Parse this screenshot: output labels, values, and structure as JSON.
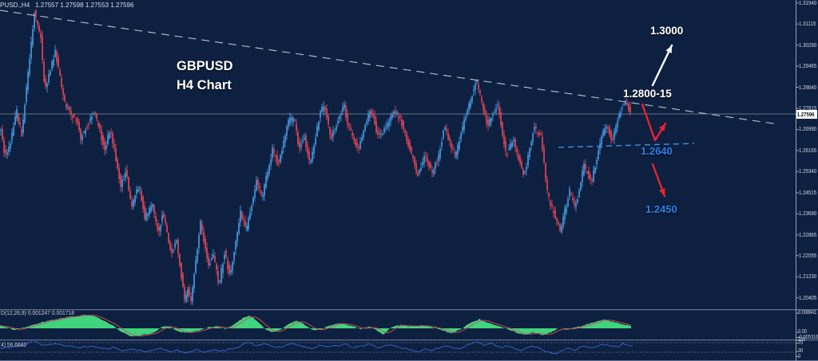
{
  "window": {
    "ohlc_line": "PUSD.,H4   1.27557 1.27598 1.27553 1.27596"
  },
  "colors": {
    "background": "#0d2040",
    "bull": "#4598dd",
    "bear": "#e04556",
    "macd_fill": "#3fd47d",
    "macd_signal": "#cf4e5a",
    "rsi_line": "#3a66d0",
    "annotation_blue": "#2f7fe8",
    "annotation_white": "#ffffff",
    "axis_text": "#cdd6e2",
    "trendline": "#c2ccd6",
    "support_dash": "#3f8ce4",
    "price_line": "#9aa4b2",
    "separator": "#5f6f92",
    "level_dotted": "#8b98ad"
  },
  "annotations": {
    "symbol": "GBPUSD",
    "timeframe": "H4 Chart",
    "target_up": "1.3000",
    "resistance_zone": "1.2800-15",
    "support_level": "1.2640",
    "target_down": "1.2450"
  },
  "price_axis": {
    "ticks": [
      "1.31940",
      "1.31115",
      "1.30290",
      "1.29465",
      "1.28640",
      "1.27815",
      "1.26990",
      "1.26165",
      "1.25340",
      "1.24515",
      "1.23690",
      "1.22865",
      "1.22055",
      "1.21230",
      "1.20405"
    ],
    "current_price": "1.27596"
  },
  "macd_panel": {
    "label": "D(12,26,9)",
    "main_value": "0.001247",
    "signal_value": "0.001718",
    "axis_max": "0.008841",
    "axis_zero": "0.00",
    "axis_min": "-0.005316"
  },
  "rsi_panel": {
    "label": "4) 56.6682",
    "axis_labels": [
      "100",
      "70",
      "30",
      "0"
    ]
  },
  "chart_data": {
    "type": "candlestick",
    "symbol": "GBPUSD",
    "timeframe": "H4",
    "ohlc_current": {
      "open": 1.27557,
      "high": 1.27598,
      "low": 1.27553,
      "close": 1.27596
    },
    "ylim": [
      1.19989,
      1.32054
    ],
    "y_axis_ticks": [
      1.3194,
      1.31115,
      1.3029,
      1.29465,
      1.2864,
      1.27815,
      1.2699,
      1.26165,
      1.2534,
      1.24515,
      1.2369,
      1.22865,
      1.22055,
      1.2123,
      1.20405
    ],
    "price_path": [
      [
        0,
        1.27
      ],
      [
        5,
        1.2594
      ],
      [
        12,
        1.265
      ],
      [
        20,
        1.2769
      ],
      [
        26,
        1.2675
      ],
      [
        42,
        1.3159
      ],
      [
        50,
        1.3056
      ],
      [
        55,
        1.2847
      ],
      [
        68,
        1.3006
      ],
      [
        80,
        1.28
      ],
      [
        87,
        1.276
      ],
      [
        95,
        1.2738
      ],
      [
        100,
        1.2666
      ],
      [
        117,
        1.2769
      ],
      [
        130,
        1.2622
      ],
      [
        137,
        1.2707
      ],
      [
        150,
        1.2479
      ],
      [
        157,
        1.2541
      ],
      [
        163,
        1.2395
      ],
      [
        173,
        1.2479
      ],
      [
        180,
        1.2354
      ],
      [
        190,
        1.2401
      ],
      [
        197,
        1.2292
      ],
      [
        203,
        1.2373
      ],
      [
        213,
        1.2208
      ],
      [
        220,
        1.227
      ],
      [
        230,
        1.2027
      ],
      [
        234,
        1.2077
      ],
      [
        238,
        1.2033
      ],
      [
        250,
        1.2332
      ],
      [
        260,
        1.2167
      ],
      [
        266,
        1.2214
      ],
      [
        273,
        1.2092
      ],
      [
        280,
        1.2217
      ],
      [
        287,
        1.2124
      ],
      [
        300,
        1.2373
      ],
      [
        307,
        1.2301
      ],
      [
        320,
        1.2498
      ],
      [
        327,
        1.2435
      ],
      [
        340,
        1.2622
      ],
      [
        347,
        1.256
      ],
      [
        360,
        1.2728
      ],
      [
        367,
        1.2747
      ],
      [
        373,
        1.2622
      ],
      [
        380,
        1.2666
      ],
      [
        387,
        1.256
      ],
      [
        400,
        1.2769
      ],
      [
        405,
        1.2791
      ],
      [
        413,
        1.2666
      ],
      [
        430,
        1.2791
      ],
      [
        433,
        1.2728
      ],
      [
        447,
        1.2622
      ],
      [
        463,
        1.2778
      ],
      [
        473,
        1.2666
      ],
      [
        493,
        1.2769
      ],
      [
        500,
        1.2744
      ],
      [
        510,
        1.2644
      ],
      [
        522,
        1.252
      ],
      [
        530,
        1.2594
      ],
      [
        540,
        1.2535
      ],
      [
        548,
        1.2594
      ],
      [
        555,
        1.2707
      ],
      [
        562,
        1.265
      ],
      [
        569,
        1.2591
      ],
      [
        578,
        1.2707
      ],
      [
        595,
        1.2894
      ],
      [
        609,
        1.2716
      ],
      [
        622,
        1.28
      ],
      [
        632,
        1.2604
      ],
      [
        642,
        1.2654
      ],
      [
        655,
        1.2513
      ],
      [
        667,
        1.2707
      ],
      [
        676,
        1.2669
      ],
      [
        685,
        1.2435
      ],
      [
        700,
        1.2301
      ],
      [
        712,
        1.2457
      ],
      [
        719,
        1.2389
      ],
      [
        730,
        1.256
      ],
      [
        739,
        1.2488
      ],
      [
        752,
        1.2675
      ],
      [
        759,
        1.2716
      ],
      [
        765,
        1.2654
      ],
      [
        775,
        1.2769
      ],
      [
        782,
        1.2813
      ],
      [
        788,
        1.276
      ]
    ],
    "trendline": {
      "x": [
        0,
        975
      ],
      "price": [
        1.3165,
        1.2719
      ],
      "style": "dashed"
    },
    "current_price_line": 1.27596,
    "support_line": {
      "x": [
        699,
        869
      ],
      "price": [
        1.2629,
        1.2644
      ],
      "style": "dashed",
      "label": "1.2640"
    },
    "macd": {
      "range": [
        -0.005316,
        0.008841
      ],
      "current_main": 0.001247,
      "current_signal": 0.001718,
      "series": [
        [
          0,
          0.0016
        ],
        [
          10,
          0.0006
        ],
        [
          18,
          -0.0012
        ],
        [
          28,
          0.0004
        ],
        [
          45,
          0.0028
        ],
        [
          65,
          0.0055
        ],
        [
          85,
          0.0072
        ],
        [
          105,
          0.0088
        ],
        [
          118,
          0.008
        ],
        [
          132,
          0.0046
        ],
        [
          142,
          0.0016
        ],
        [
          152,
          -0.0022
        ],
        [
          165,
          -0.0053
        ],
        [
          178,
          -0.0043
        ],
        [
          192,
          -0.003
        ],
        [
          205,
          0.0016
        ],
        [
          213,
          0.001
        ],
        [
          222,
          -0.0018
        ],
        [
          232,
          -0.003
        ],
        [
          243,
          -0.0022
        ],
        [
          252,
          -0.0008
        ],
        [
          262,
          0.0009
        ],
        [
          272,
          0.0013
        ],
        [
          281,
          -0.0006
        ],
        [
          292,
          0.0022
        ],
        [
          305,
          0.007
        ],
        [
          312,
          0.0083
        ],
        [
          322,
          0.0048
        ],
        [
          332,
          -0.0005
        ],
        [
          341,
          -0.0026
        ],
        [
          350,
          -0.0014
        ],
        [
          360,
          0.0024
        ],
        [
          372,
          0.005
        ],
        [
          382,
          0.0022
        ],
        [
          392,
          -0.0013
        ],
        [
          402,
          -0.0006
        ],
        [
          412,
          0.0018
        ],
        [
          428,
          0.0034
        ],
        [
          440,
          0.0016
        ],
        [
          452,
          -0.0005
        ],
        [
          463,
          0.0012
        ],
        [
          472,
          -0.0015
        ],
        [
          480,
          -0.004
        ],
        [
          490,
          0.0008
        ],
        [
          502,
          0.0022
        ],
        [
          515,
          0.0012
        ],
        [
          528,
          0.0018
        ],
        [
          540,
          0.001
        ],
        [
          552,
          -0.001
        ],
        [
          565,
          -0.0034
        ],
        [
          578,
          -0.0002
        ],
        [
          590,
          0.004
        ],
        [
          600,
          0.006
        ],
        [
          612,
          0.0034
        ],
        [
          624,
          0.0015
        ],
        [
          636,
          -0.0008
        ],
        [
          648,
          -0.003
        ],
        [
          658,
          -0.0042
        ],
        [
          668,
          -0.0028
        ],
        [
          680,
          -0.0046
        ],
        [
          690,
          -0.0024
        ],
        [
          700,
          0.0002
        ],
        [
          710,
          -0.0008
        ],
        [
          720,
          0.0006
        ],
        [
          730,
          0.0018
        ],
        [
          742,
          0.0038
        ],
        [
          755,
          0.0058
        ],
        [
          766,
          0.0044
        ],
        [
          776,
          0.003
        ],
        [
          788,
          0.0018
        ]
      ]
    },
    "rsi": {
      "levels": [
        70,
        30
      ],
      "current": 56.6682,
      "series": [
        [
          0,
          46
        ],
        [
          15,
          52
        ],
        [
          30,
          60
        ],
        [
          42,
          76
        ],
        [
          55,
          58
        ],
        [
          70,
          64
        ],
        [
          85,
          57
        ],
        [
          100,
          50
        ],
        [
          117,
          58
        ],
        [
          130,
          42
        ],
        [
          142,
          50
        ],
        [
          152,
          36
        ],
        [
          165,
          44
        ],
        [
          180,
          32
        ],
        [
          192,
          40
        ],
        [
          203,
          46
        ],
        [
          213,
          30
        ],
        [
          222,
          38
        ],
        [
          232,
          24
        ],
        [
          245,
          42
        ],
        [
          256,
          30
        ],
        [
          266,
          40
        ],
        [
          276,
          34
        ],
        [
          290,
          44
        ],
        [
          300,
          56
        ],
        [
          312,
          70
        ],
        [
          322,
          58
        ],
        [
          333,
          66
        ],
        [
          342,
          54
        ],
        [
          352,
          48
        ],
        [
          362,
          66
        ],
        [
          372,
          60
        ],
        [
          382,
          50
        ],
        [
          392,
          44
        ],
        [
          402,
          62
        ],
        [
          413,
          52
        ],
        [
          424,
          58
        ],
        [
          433,
          62
        ],
        [
          442,
          48
        ],
        [
          452,
          56
        ],
        [
          463,
          64
        ],
        [
          473,
          50
        ],
        [
          483,
          58
        ],
        [
          493,
          60
        ],
        [
          503,
          48
        ],
        [
          513,
          40
        ],
        [
          523,
          30
        ],
        [
          532,
          44
        ],
        [
          540,
          36
        ],
        [
          548,
          46
        ],
        [
          556,
          58
        ],
        [
          565,
          48
        ],
        [
          572,
          42
        ],
        [
          582,
          56
        ],
        [
          595,
          74
        ],
        [
          605,
          60
        ],
        [
          615,
          66
        ],
        [
          625,
          50
        ],
        [
          635,
          56
        ],
        [
          645,
          44
        ],
        [
          655,
          38
        ],
        [
          665,
          56
        ],
        [
          675,
          48
        ],
        [
          685,
          32
        ],
        [
          695,
          24
        ],
        [
          703,
          36
        ],
        [
          712,
          48
        ],
        [
          720,
          40
        ],
        [
          730,
          56
        ],
        [
          740,
          50
        ],
        [
          752,
          62
        ],
        [
          762,
          58
        ],
        [
          772,
          52
        ],
        [
          782,
          66
        ],
        [
          790,
          56.7
        ]
      ]
    }
  }
}
